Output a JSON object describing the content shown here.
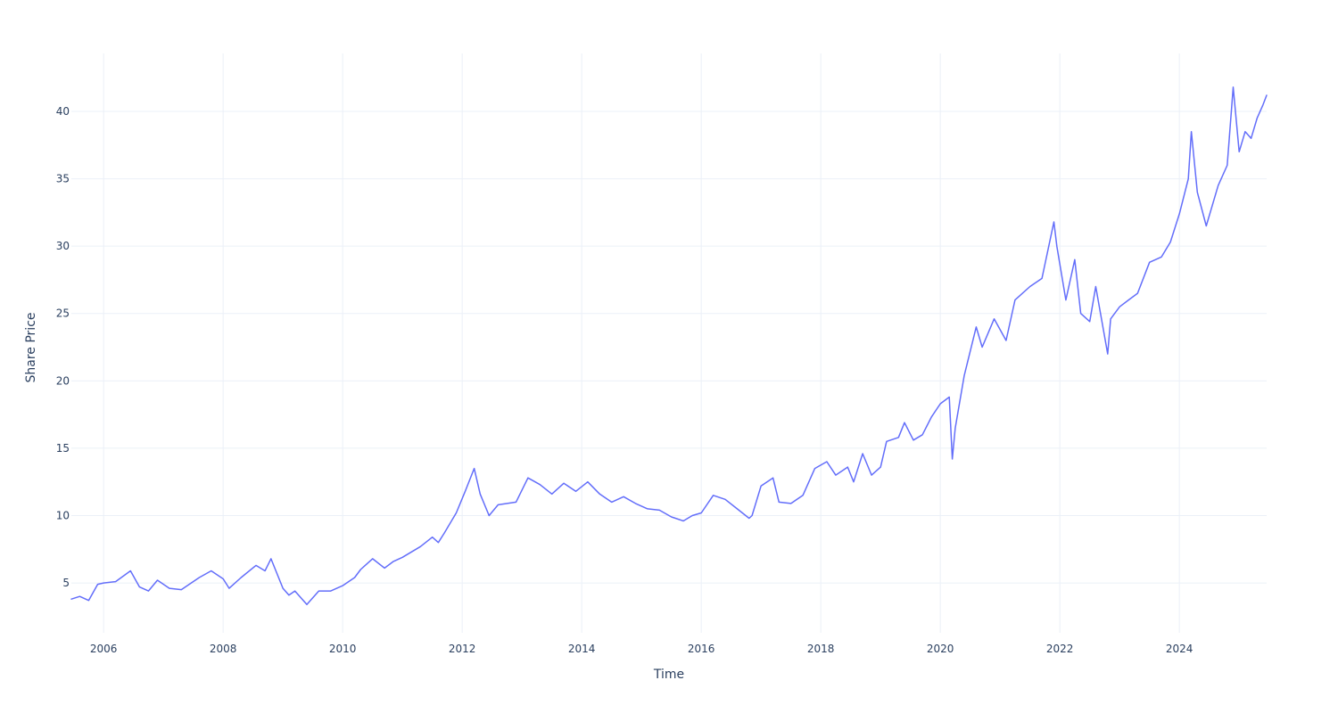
{
  "chart_data": {
    "type": "line",
    "title": "",
    "xlabel": "Time",
    "ylabel": "Share Price",
    "x_tick_labels": [
      "2006",
      "2008",
      "2010",
      "2012",
      "2014",
      "2016",
      "2018",
      "2020",
      "2022",
      "2024"
    ],
    "y_tick_labels": [
      "5",
      "10",
      "15",
      "20",
      "25",
      "30",
      "35",
      "40"
    ],
    "y_ticks": [
      5,
      10,
      15,
      20,
      25,
      30,
      35,
      40
    ],
    "xlim": [
      2005.46,
      2025.46
    ],
    "ylim": [
      1.3,
      44.3
    ],
    "grid": true,
    "legend": "none",
    "color": "#636efa",
    "series": [
      {
        "x": [
          2005.46,
          2005.6,
          2005.75,
          2005.9,
          2006.0,
          2006.2,
          2006.45,
          2006.6,
          2006.75,
          2006.9,
          2007.1,
          2007.3,
          2007.6,
          2007.8,
          2008.0,
          2008.1,
          2008.3,
          2008.55,
          2008.7,
          2008.8,
          2009.0,
          2009.1,
          2009.2,
          2009.4,
          2009.6,
          2009.8,
          2010.0,
          2010.2,
          2010.3,
          2010.5,
          2010.7,
          2010.85,
          2011.0,
          2011.3,
          2011.5,
          2011.6,
          2011.7,
          2011.9,
          2012.05,
          2012.2,
          2012.3,
          2012.45,
          2012.6,
          2012.9,
          2013.1,
          2013.3,
          2013.5,
          2013.7,
          2013.9,
          2014.1,
          2014.3,
          2014.5,
          2014.7,
          2014.9,
          2015.1,
          2015.3,
          2015.5,
          2015.7,
          2015.85,
          2016.0,
          2016.2,
          2016.4,
          2016.6,
          2016.8,
          2016.85,
          2017.0,
          2017.2,
          2017.3,
          2017.5,
          2017.7,
          2017.9,
          2018.1,
          2018.25,
          2018.45,
          2018.55,
          2018.7,
          2018.85,
          2019.0,
          2019.1,
          2019.3,
          2019.4,
          2019.55,
          2019.7,
          2019.85,
          2020.0,
          2020.15,
          2020.2,
          2020.25,
          2020.4,
          2020.6,
          2020.7,
          2020.9,
          2021.1,
          2021.25,
          2021.5,
          2021.7,
          2021.9,
          2021.95,
          2022.1,
          2022.25,
          2022.35,
          2022.5,
          2022.6,
          2022.8,
          2022.85,
          2023.0,
          2023.15,
          2023.3,
          2023.5,
          2023.7,
          2023.85,
          2024.0,
          2024.15,
          2024.2,
          2024.3,
          2024.45,
          2024.65,
          2024.8,
          2024.9,
          2025.0,
          2025.1,
          2025.2,
          2025.3,
          2025.4,
          2025.46
        ],
        "y": [
          3.8,
          4.0,
          3.7,
          4.9,
          5.0,
          5.1,
          5.9,
          4.7,
          4.4,
          5.2,
          4.6,
          4.5,
          5.4,
          5.9,
          5.3,
          4.6,
          5.4,
          6.3,
          5.9,
          6.8,
          4.6,
          4.1,
          4.4,
          3.4,
          4.4,
          4.4,
          4.8,
          5.4,
          6.0,
          6.8,
          6.1,
          6.6,
          6.9,
          7.7,
          8.4,
          8.0,
          8.7,
          10.2,
          11.8,
          13.5,
          11.6,
          10.0,
          10.8,
          11.0,
          12.8,
          12.3,
          11.6,
          12.4,
          11.8,
          12.5,
          11.6,
          11.0,
          11.4,
          10.9,
          10.5,
          10.4,
          9.9,
          9.6,
          10.0,
          10.2,
          11.5,
          11.2,
          10.5,
          9.8,
          10.0,
          12.2,
          12.8,
          11.0,
          10.9,
          11.5,
          13.5,
          14.0,
          13.0,
          13.6,
          12.5,
          14.6,
          13.0,
          13.6,
          15.5,
          15.8,
          16.9,
          15.6,
          16.0,
          17.3,
          18.3,
          18.8,
          14.2,
          16.5,
          20.4,
          24.0,
          22.5,
          24.6,
          23.0,
          26.0,
          27.0,
          27.6,
          31.8,
          30.0,
          26.0,
          29.0,
          25.0,
          24.4,
          27.0,
          22.0,
          24.6,
          25.5,
          26.0,
          26.5,
          28.8,
          29.2,
          30.3,
          32.4,
          35.0,
          38.5,
          34.0,
          31.5,
          34.5,
          36.0,
          41.8,
          37.0,
          38.5,
          38.0,
          39.5,
          40.5,
          41.2
        ]
      }
    ]
  }
}
